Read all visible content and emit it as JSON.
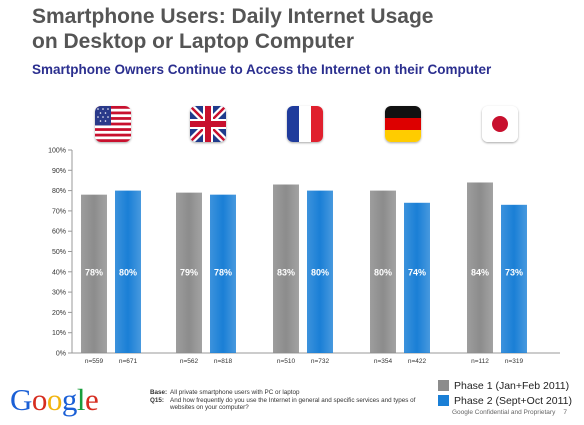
{
  "header": {
    "title_line1": "Smartphone Users: Daily Internet Usage",
    "title_line2": "on Desktop or Laptop Computer",
    "subtitle": "Smartphone Owners Continue to Access the Internet on their Computer"
  },
  "flags": [
    {
      "icon": "us-flag-icon"
    },
    {
      "icon": "uk-flag-icon"
    },
    {
      "icon": "france-flag-icon"
    },
    {
      "icon": "germany-flag-icon"
    },
    {
      "icon": "japan-flag-icon"
    }
  ],
  "chart_data": {
    "type": "bar",
    "categories": [
      "",
      "",
      "",
      "",
      ""
    ],
    "series": [
      {
        "name": "Phase 1 (Jan+Feb 2011)",
        "values": [
          78,
          79,
          83,
          80,
          84
        ],
        "labels": [
          "78%",
          "79%",
          "83%",
          "80%",
          "84%"
        ],
        "n": [
          "n=559",
          "n=562",
          "n=510",
          "n=354",
          "n=112"
        ]
      },
      {
        "name": "Phase 2 (Sept+Oct 2011)",
        "values": [
          80,
          78,
          80,
          74,
          73
        ],
        "labels": [
          "80%",
          "78%",
          "80%",
          "74%",
          "73%"
        ],
        "n": [
          "n=671",
          "n=818",
          "n=732",
          "n=422",
          "n=319"
        ]
      }
    ],
    "ylim": [
      0,
      100
    ],
    "yticks": [
      "0%",
      "10%",
      "20%",
      "30%",
      "40%",
      "50%",
      "60%",
      "70%",
      "80%",
      "90%",
      "100%"
    ],
    "grid": false,
    "legend": "bottom-right"
  },
  "colors": {
    "phase1": "#8c8c8c",
    "phase2": "#1a7fd6",
    "title": "#555555",
    "subtitle": "#2b2f8f"
  },
  "footer": {
    "logo": "Google",
    "base_key": "Base:",
    "base_text": "All private smartphone users with PC or laptop",
    "q_key": "Q15:",
    "q_text": "And how frequently do you use the Internet in general and specific services and types of websites on your computer?",
    "confidential": "Google Confidential and Proprietary",
    "page_number": "7"
  }
}
